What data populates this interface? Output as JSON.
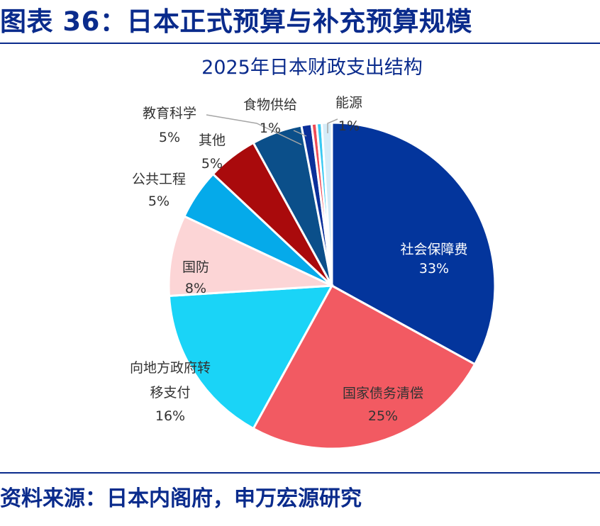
{
  "header": {
    "title": "图表 36：日本正式预算与补充预算规模"
  },
  "footer": {
    "source": "资料来源：日本内阁府，申万宏源研究"
  },
  "colors": {
    "brand": "#0a2b8c"
  },
  "chart_data": {
    "type": "pie",
    "title": "2025年日本财政支出结构",
    "start_angle_deg": 0,
    "direction": "clockwise",
    "slices": [
      {
        "name": "社会保障费",
        "value": 33,
        "label": "33%",
        "color": "#03359c"
      },
      {
        "name": "国家债务清偿",
        "value": 25,
        "label": "25%",
        "color": "#f25a62"
      },
      {
        "name": "向地方政府转移支付",
        "value": 16,
        "label": "16%",
        "color": "#1ad4f7"
      },
      {
        "name": "国防",
        "value": 8,
        "label": "8%",
        "color": "#fcd5d6"
      },
      {
        "name": "公共工程",
        "value": 5,
        "label": "5%",
        "color": "#05aaea"
      },
      {
        "name": "其他",
        "value": 5,
        "label": "5%",
        "color": "#a90a0c"
      },
      {
        "name": "教育科学",
        "value": 5,
        "label": "5%",
        "color": "#0b4f8a"
      },
      {
        "name": "食物供给",
        "value": 1,
        "label": "1%",
        "color": "#0a2f9a"
      },
      {
        "name": "",
        "value": 0.5,
        "label": "",
        "color": "#ef4b56"
      },
      {
        "name": "",
        "value": 0.5,
        "label": "",
        "color": "#38c9f2"
      },
      {
        "name": "能源",
        "value": 1,
        "label": "1%",
        "color": "#d5ecf8"
      }
    ]
  }
}
